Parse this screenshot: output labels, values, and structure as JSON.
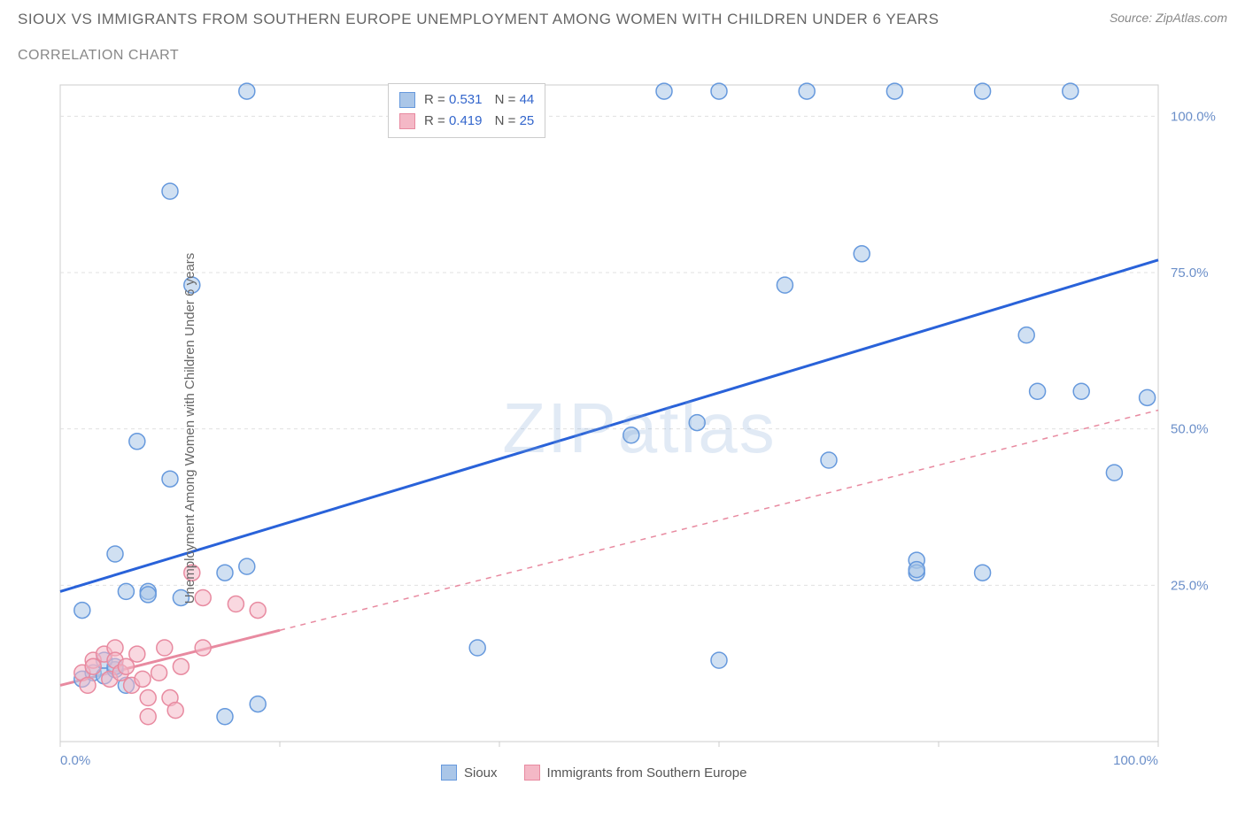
{
  "title": "SIOUX VS IMMIGRANTS FROM SOUTHERN EUROPE UNEMPLOYMENT AMONG WOMEN WITH CHILDREN UNDER 6 YEARS",
  "subtitle": "CORRELATION CHART",
  "source": "Source: ZipAtlas.com",
  "y_axis_label": "Unemployment Among Women with Children Under 6 years",
  "watermark": "ZIPatlas",
  "chart": {
    "type": "scatter",
    "xlim": [
      0,
      100
    ],
    "ylim": [
      0,
      105
    ],
    "y_ticks": [
      25,
      50,
      75,
      100
    ],
    "y_tick_labels": [
      "25.0%",
      "50.0%",
      "75.0%",
      "100.0%"
    ],
    "x_ticks": [
      0,
      20,
      40,
      60,
      80,
      100
    ],
    "x_tick_labels": [
      "0.0%",
      "",
      "",
      "",
      "",
      "100.0%"
    ],
    "grid_color": "#e0e0e0",
    "axis_color": "#cccccc",
    "background_color": "#ffffff",
    "marker_radius": 9,
    "marker_stroke_width": 1.5,
    "line_width_solid": 3,
    "line_width_dash": 1.5,
    "series": [
      {
        "name": "Sioux",
        "fill_color": "#aac6e8",
        "stroke_color": "#6699dd",
        "line_color": "#2962d9",
        "fill_opacity": 0.55,
        "R": "0.531",
        "N": "44",
        "trend": {
          "x1": 0,
          "y1": 24,
          "x2": 100,
          "y2": 77,
          "solid_until_x": 100
        },
        "points": [
          [
            2,
            10
          ],
          [
            3,
            11
          ],
          [
            4,
            10.5
          ],
          [
            5,
            11.5
          ],
          [
            6,
            9
          ],
          [
            4,
            13
          ],
          [
            2,
            21
          ],
          [
            6,
            24
          ],
          [
            8,
            24
          ],
          [
            8,
            23.5
          ],
          [
            5,
            30
          ],
          [
            7,
            48
          ],
          [
            10,
            42
          ],
          [
            11,
            23
          ],
          [
            15,
            27
          ],
          [
            17,
            104
          ],
          [
            10,
            88
          ],
          [
            12,
            73
          ],
          [
            17,
            28
          ],
          [
            18,
            6
          ],
          [
            38,
            15
          ],
          [
            52,
            49
          ],
          [
            55,
            104
          ],
          [
            58,
            51
          ],
          [
            60,
            104
          ],
          [
            60,
            13
          ],
          [
            66,
            73
          ],
          [
            68,
            104
          ],
          [
            70,
            45
          ],
          [
            73,
            78
          ],
          [
            76,
            104
          ],
          [
            78,
            29
          ],
          [
            78,
            27
          ],
          [
            78,
            27.5
          ],
          [
            84,
            27
          ],
          [
            84,
            104
          ],
          [
            88,
            65
          ],
          [
            89,
            56
          ],
          [
            92,
            104
          ],
          [
            93,
            56
          ],
          [
            96,
            43
          ],
          [
            99,
            55
          ],
          [
            15,
            4
          ],
          [
            5,
            12
          ]
        ]
      },
      {
        "name": "Immigrants from Southern Europe",
        "fill_color": "#f4b8c6",
        "stroke_color": "#e88aa0",
        "line_color": "#e88aa0",
        "fill_opacity": 0.55,
        "R": "0.419",
        "N": "25",
        "trend": {
          "x1": 0,
          "y1": 9,
          "x2": 100,
          "y2": 53,
          "solid_until_x": 20
        },
        "points": [
          [
            2,
            11
          ],
          [
            2.5,
            9
          ],
          [
            3,
            13
          ],
          [
            3,
            12
          ],
          [
            4,
            14
          ],
          [
            4.5,
            10
          ],
          [
            5,
            15
          ],
          [
            5,
            13
          ],
          [
            5.5,
            11
          ],
          [
            6,
            12
          ],
          [
            6.5,
            9
          ],
          [
            7,
            14
          ],
          [
            7.5,
            10
          ],
          [
            8,
            7
          ],
          [
            8,
            4
          ],
          [
            9,
            11
          ],
          [
            9.5,
            15
          ],
          [
            10,
            7
          ],
          [
            10.5,
            5
          ],
          [
            11,
            12
          ],
          [
            12,
            27
          ],
          [
            13,
            23
          ],
          [
            13,
            15
          ],
          [
            16,
            22
          ],
          [
            18,
            21
          ]
        ]
      }
    ]
  },
  "legend": {
    "series1_label": "Sioux",
    "series2_label": "Immigrants from Southern Europe"
  }
}
